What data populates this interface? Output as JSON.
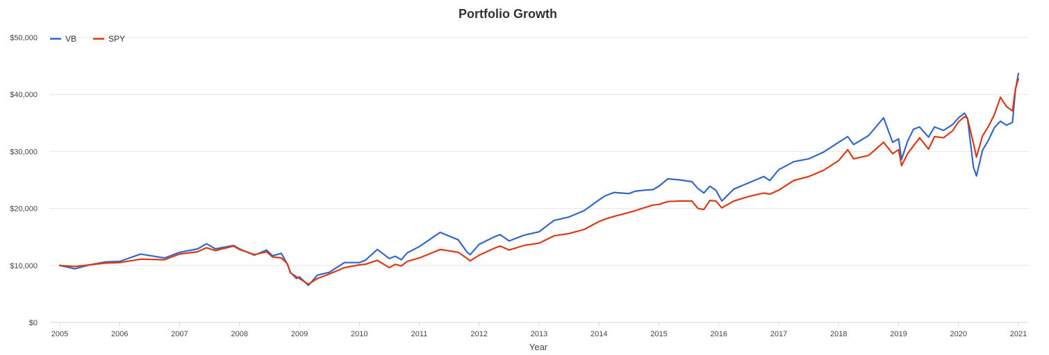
{
  "chart_data": {
    "type": "line",
    "title": "Portfolio Growth",
    "xlabel": "Year",
    "ylabel": "",
    "xlim": [
      2005,
      2021
    ],
    "ylim": [
      0,
      50000
    ],
    "x_ticks": [
      "2005",
      "2006",
      "2007",
      "2008",
      "2009",
      "2010",
      "2011",
      "2012",
      "2013",
      "2014",
      "2015",
      "2016",
      "2017",
      "2018",
      "2019",
      "2020",
      "2021"
    ],
    "y_ticks": [
      "$0",
      "$10,000",
      "$20,000",
      "$30,000",
      "$40,000",
      "$50,000"
    ],
    "grid": "horizontal",
    "legend_position": "top-left",
    "series": [
      {
        "name": "VB",
        "color": "#3366cc",
        "points": [
          [
            2005.0,
            10000
          ],
          [
            2005.25,
            9400
          ],
          [
            2005.5,
            10100
          ],
          [
            2005.75,
            10600
          ],
          [
            2006.0,
            10700
          ],
          [
            2006.35,
            12000
          ],
          [
            2006.75,
            11300
          ],
          [
            2007.0,
            12300
          ],
          [
            2007.3,
            12900
          ],
          [
            2007.45,
            13800
          ],
          [
            2007.6,
            12900
          ],
          [
            2007.9,
            13500
          ],
          [
            2008.0,
            12900
          ],
          [
            2008.25,
            11800
          ],
          [
            2008.45,
            12700
          ],
          [
            2008.55,
            11700
          ],
          [
            2008.7,
            12100
          ],
          [
            2008.8,
            10200
          ],
          [
            2008.85,
            8800
          ],
          [
            2008.95,
            7700
          ],
          [
            2009.0,
            8000
          ],
          [
            2009.15,
            6500
          ],
          [
            2009.3,
            8300
          ],
          [
            2009.5,
            8800
          ],
          [
            2009.75,
            10500
          ],
          [
            2010.0,
            10500
          ],
          [
            2010.1,
            10900
          ],
          [
            2010.3,
            12800
          ],
          [
            2010.5,
            11200
          ],
          [
            2010.6,
            11600
          ],
          [
            2010.7,
            11000
          ],
          [
            2010.8,
            12200
          ],
          [
            2011.0,
            13300
          ],
          [
            2011.35,
            15800
          ],
          [
            2011.65,
            14500
          ],
          [
            2011.8,
            12300
          ],
          [
            2011.85,
            11900
          ],
          [
            2012.0,
            13700
          ],
          [
            2012.25,
            15000
          ],
          [
            2012.35,
            15400
          ],
          [
            2012.5,
            14300
          ],
          [
            2012.75,
            15300
          ],
          [
            2013.0,
            15900
          ],
          [
            2013.25,
            17900
          ],
          [
            2013.5,
            18500
          ],
          [
            2013.75,
            19600
          ],
          [
            2014.0,
            21500
          ],
          [
            2014.1,
            22200
          ],
          [
            2014.25,
            22800
          ],
          [
            2014.5,
            22600
          ],
          [
            2014.6,
            23000
          ],
          [
            2014.75,
            23200
          ],
          [
            2014.9,
            23300
          ],
          [
            2015.0,
            23900
          ],
          [
            2015.15,
            25200
          ],
          [
            2015.35,
            25000
          ],
          [
            2015.55,
            24700
          ],
          [
            2015.65,
            23500
          ],
          [
            2015.75,
            22700
          ],
          [
            2015.85,
            23900
          ],
          [
            2015.95,
            23200
          ],
          [
            2016.05,
            21300
          ],
          [
            2016.25,
            23400
          ],
          [
            2016.5,
            24500
          ],
          [
            2016.75,
            25600
          ],
          [
            2016.85,
            24900
          ],
          [
            2017.0,
            26800
          ],
          [
            2017.25,
            28200
          ],
          [
            2017.5,
            28700
          ],
          [
            2017.75,
            29900
          ],
          [
            2018.0,
            31600
          ],
          [
            2018.15,
            32600
          ],
          [
            2018.25,
            31200
          ],
          [
            2018.5,
            32800
          ],
          [
            2018.75,
            35900
          ],
          [
            2018.9,
            31600
          ],
          [
            2019.0,
            32200
          ],
          [
            2019.05,
            28600
          ],
          [
            2019.15,
            31800
          ],
          [
            2019.25,
            33900
          ],
          [
            2019.35,
            34300
          ],
          [
            2019.5,
            32500
          ],
          [
            2019.6,
            34300
          ],
          [
            2019.75,
            33700
          ],
          [
            2019.9,
            34700
          ],
          [
            2020.0,
            35900
          ],
          [
            2020.1,
            36700
          ],
          [
            2020.15,
            35800
          ],
          [
            2020.25,
            27200
          ],
          [
            2020.3,
            25700
          ],
          [
            2020.4,
            30200
          ],
          [
            2020.5,
            32000
          ],
          [
            2020.6,
            34200
          ],
          [
            2020.7,
            35300
          ],
          [
            2020.8,
            34600
          ],
          [
            2020.9,
            35100
          ],
          [
            2020.95,
            40800
          ],
          [
            2021.0,
            43700
          ]
        ]
      },
      {
        "name": "SPY",
        "color": "#dc3912",
        "points": [
          [
            2005.0,
            10000
          ],
          [
            2005.25,
            9800
          ],
          [
            2005.5,
            10100
          ],
          [
            2005.75,
            10400
          ],
          [
            2006.0,
            10500
          ],
          [
            2006.35,
            11100
          ],
          [
            2006.75,
            11000
          ],
          [
            2007.0,
            12000
          ],
          [
            2007.3,
            12400
          ],
          [
            2007.45,
            13100
          ],
          [
            2007.6,
            12600
          ],
          [
            2007.9,
            13400
          ],
          [
            2008.0,
            12800
          ],
          [
            2008.25,
            11900
          ],
          [
            2008.45,
            12400
          ],
          [
            2008.55,
            11500
          ],
          [
            2008.7,
            11300
          ],
          [
            2008.8,
            10300
          ],
          [
            2008.85,
            8700
          ],
          [
            2008.95,
            8000
          ],
          [
            2009.0,
            7700
          ],
          [
            2009.15,
            6700
          ],
          [
            2009.3,
            7700
          ],
          [
            2009.5,
            8500
          ],
          [
            2009.75,
            9600
          ],
          [
            2010.0,
            10100
          ],
          [
            2010.1,
            10200
          ],
          [
            2010.3,
            10900
          ],
          [
            2010.5,
            9600
          ],
          [
            2010.6,
            10200
          ],
          [
            2010.7,
            9900
          ],
          [
            2010.8,
            10700
          ],
          [
            2011.0,
            11300
          ],
          [
            2011.35,
            12800
          ],
          [
            2011.65,
            12300
          ],
          [
            2011.8,
            11200
          ],
          [
            2011.85,
            10800
          ],
          [
            2012.0,
            11800
          ],
          [
            2012.25,
            13000
          ],
          [
            2012.35,
            13400
          ],
          [
            2012.5,
            12700
          ],
          [
            2012.75,
            13500
          ],
          [
            2013.0,
            13900
          ],
          [
            2013.25,
            15200
          ],
          [
            2013.5,
            15600
          ],
          [
            2013.75,
            16300
          ],
          [
            2014.0,
            17700
          ],
          [
            2014.1,
            18100
          ],
          [
            2014.25,
            18600
          ],
          [
            2014.5,
            19300
          ],
          [
            2014.6,
            19600
          ],
          [
            2014.75,
            20100
          ],
          [
            2014.9,
            20600
          ],
          [
            2015.0,
            20700
          ],
          [
            2015.15,
            21200
          ],
          [
            2015.35,
            21300
          ],
          [
            2015.55,
            21300
          ],
          [
            2015.65,
            20000
          ],
          [
            2015.75,
            19800
          ],
          [
            2015.85,
            21400
          ],
          [
            2015.95,
            21300
          ],
          [
            2016.05,
            20100
          ],
          [
            2016.25,
            21300
          ],
          [
            2016.5,
            22100
          ],
          [
            2016.75,
            22700
          ],
          [
            2016.85,
            22500
          ],
          [
            2017.0,
            23200
          ],
          [
            2017.25,
            24900
          ],
          [
            2017.5,
            25600
          ],
          [
            2017.75,
            26700
          ],
          [
            2018.0,
            28400
          ],
          [
            2018.15,
            30300
          ],
          [
            2018.25,
            28700
          ],
          [
            2018.5,
            29300
          ],
          [
            2018.75,
            31600
          ],
          [
            2018.9,
            29600
          ],
          [
            2019.0,
            30300
          ],
          [
            2019.05,
            27500
          ],
          [
            2019.15,
            29600
          ],
          [
            2019.25,
            31000
          ],
          [
            2019.35,
            32400
          ],
          [
            2019.5,
            30400
          ],
          [
            2019.6,
            32600
          ],
          [
            2019.75,
            32400
          ],
          [
            2019.9,
            33600
          ],
          [
            2020.0,
            35200
          ],
          [
            2020.1,
            36100
          ],
          [
            2020.15,
            35800
          ],
          [
            2020.25,
            31400
          ],
          [
            2020.3,
            29000
          ],
          [
            2020.4,
            32700
          ],
          [
            2020.5,
            34400
          ],
          [
            2020.6,
            36500
          ],
          [
            2020.7,
            39500
          ],
          [
            2020.8,
            37900
          ],
          [
            2020.9,
            37100
          ],
          [
            2020.95,
            41000
          ],
          [
            2021.0,
            42700
          ]
        ]
      }
    ]
  }
}
